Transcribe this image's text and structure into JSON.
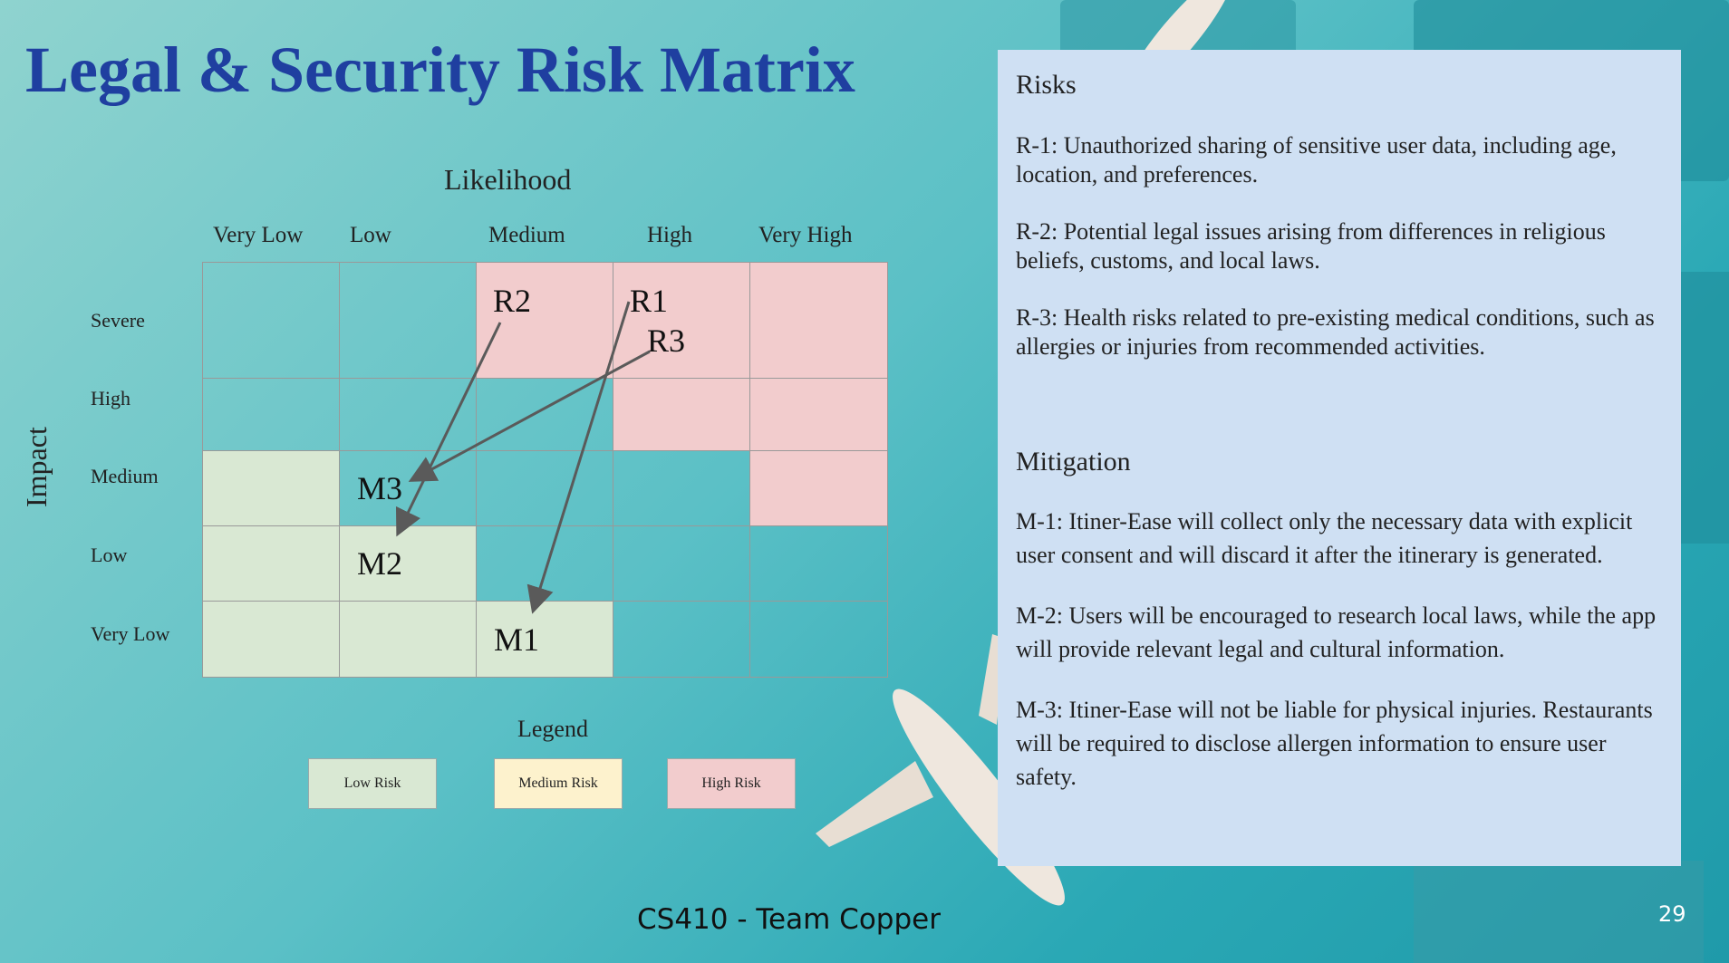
{
  "title": "Legal & Security Risk Matrix",
  "matrix": {
    "likelihood_label": "Likelihood",
    "impact_label": "Impact",
    "columns": [
      "Very Low",
      "Low",
      "Medium",
      "High",
      "Very High"
    ],
    "rows": [
      "Severe",
      "High",
      "Medium",
      "Low",
      "Very Low"
    ],
    "cells": [
      [
        "medium",
        "medium",
        "high",
        "high",
        "high"
      ],
      [
        "medium",
        "medium",
        "medium",
        "high",
        "high"
      ],
      [
        "low",
        "medium",
        "medium",
        "medium",
        "high"
      ],
      [
        "low",
        "low",
        "medium",
        "medium",
        "medium"
      ],
      [
        "low",
        "low",
        "low",
        "medium",
        "medium"
      ]
    ],
    "markers": {
      "r2": "R2",
      "r1": "R1",
      "r3": "R3",
      "m3": "M3",
      "m2": "M2",
      "m1": "M1"
    },
    "arrows": [
      {
        "from": "R2",
        "to": "M2"
      },
      {
        "from": "R1",
        "to": "M1"
      },
      {
        "from": "R3",
        "to": "M3"
      }
    ],
    "colors": {
      "low": "#d9e8d3",
      "medium": "#fdf2cd",
      "high": "#f2cccd"
    }
  },
  "legend": {
    "title": "Legend",
    "items": [
      {
        "label": "Low Risk",
        "color": "#d9e8d3"
      },
      {
        "label": "Medium Risk",
        "color": "#fdf2cd"
      },
      {
        "label": "High Risk",
        "color": "#f2cccd"
      }
    ]
  },
  "panel": {
    "risks_heading": "Risks",
    "risks": [
      "R-1: Unauthorized sharing of sensitive user data, including age, location, and preferences.",
      "R-2: Potential legal issues arising from differences in religious beliefs, customs, and local laws.",
      "R-3: Health risks related to pre-existing medical conditions, such as allergies or injuries from recommended activities."
    ],
    "mitigation_heading": "Mitigation",
    "mitigations": [
      "M-1: Itiner-Ease will collect only the necessary data with explicit user consent and will discard it after the itinerary is generated.",
      "M-2: Users will be encouraged to research local laws, while the app will provide relevant legal and cultural information.",
      "M-3: Itiner-Ease will not be liable for physical injuries. Restaurants will be required to disclose allergen information to ensure user safety."
    ]
  },
  "footer": "CS410 - Team Copper",
  "page_number": "29"
}
